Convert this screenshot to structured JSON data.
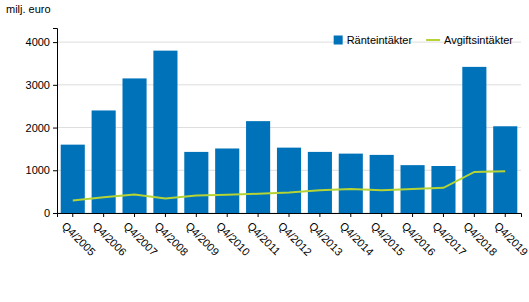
{
  "chart_data": {
    "type": "bar",
    "ylabel": "milj. euro",
    "categories": [
      "Q4/2005",
      "Q4/2006",
      "Q4/2007",
      "Q4/2008",
      "Q4/2009",
      "Q4/2010",
      "Q4/2011",
      "Q4/2012",
      "Q4/2013",
      "Q4/2014",
      "Q4/2015",
      "Q4/2016",
      "Q4/2017",
      "Q4/2018",
      "Q4/2019"
    ],
    "series": [
      {
        "name": "Ränteintäkter",
        "type": "bar",
        "color": "#0072b9",
        "values": [
          1600,
          2400,
          3150,
          3800,
          1430,
          1510,
          2150,
          1530,
          1430,
          1390,
          1360,
          1120,
          1100,
          3420,
          2030
        ]
      },
      {
        "name": "Avgiftsintäkter",
        "type": "line",
        "color": "#b5d334",
        "values": [
          290,
          370,
          430,
          340,
          410,
          430,
          450,
          480,
          530,
          560,
          530,
          560,
          590,
          960,
          980
        ]
      }
    ],
    "ylim": [
      0,
      4330
    ],
    "yticks": [
      0,
      1000,
      2000,
      3000,
      4000
    ],
    "grid": true,
    "legend": "top-right"
  }
}
